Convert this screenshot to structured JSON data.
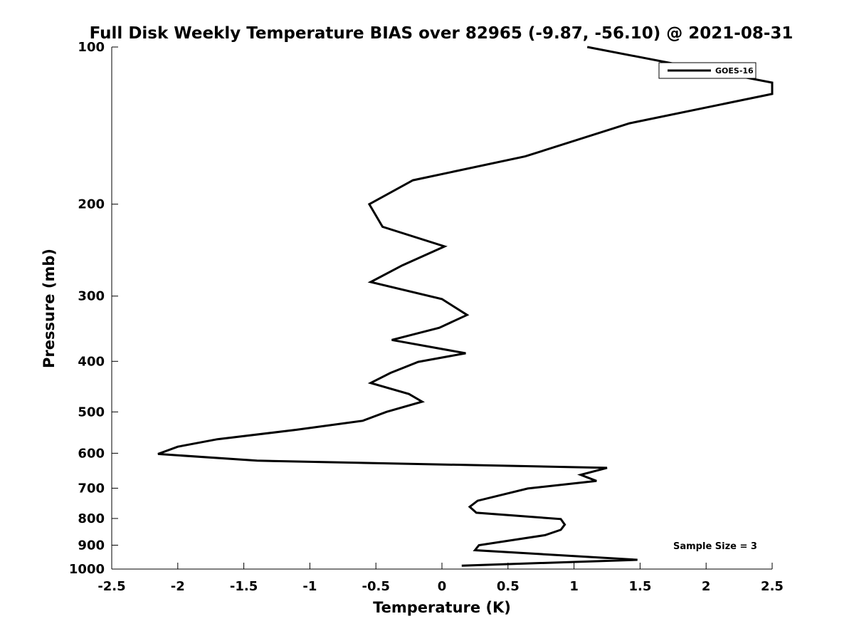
{
  "chart_data": {
    "type": "line",
    "title": "Full Disk Weekly Temperature BIAS over 82965 (-9.87, -56.10) @ 2021-08-31",
    "xlabel": "Temperature (K)",
    "ylabel": "Pressure (mb)",
    "xlim": [
      -2.5,
      2.5
    ],
    "ylim": [
      100,
      1000
    ],
    "y_scale": "log",
    "y_inverted": true,
    "x_ticks": [
      -2.5,
      -2,
      -1.5,
      -1,
      -0.5,
      0,
      0.5,
      1,
      1.5,
      2,
      2.5
    ],
    "x_tick_labels": [
      "-2.5",
      "-2",
      "-1.5",
      "-1",
      "-0.5",
      "0",
      "0.5",
      "1",
      "1.5",
      "2",
      "2.5"
    ],
    "y_ticks": [
      100,
      200,
      300,
      400,
      500,
      600,
      700,
      800,
      900,
      1000
    ],
    "y_tick_labels": [
      "100",
      "200",
      "300",
      "400",
      "500",
      "600",
      "700",
      "800",
      "900",
      "1000"
    ],
    "grid": false,
    "legend_position": "top-right",
    "series": [
      {
        "name": "GOES-16",
        "color": "#000000",
        "points": [
          {
            "x": 1.1,
            "y": 100
          },
          {
            "x": 2.5,
            "y": 117
          },
          {
            "x": 2.5,
            "y": 123
          },
          {
            "x": 1.42,
            "y": 140
          },
          {
            "x": 0.63,
            "y": 162
          },
          {
            "x": -0.22,
            "y": 180
          },
          {
            "x": -0.55,
            "y": 200
          },
          {
            "x": -0.45,
            "y": 221
          },
          {
            "x": 0.02,
            "y": 241
          },
          {
            "x": -0.3,
            "y": 262
          },
          {
            "x": -0.54,
            "y": 282
          },
          {
            "x": 0.0,
            "y": 304
          },
          {
            "x": 0.19,
            "y": 326
          },
          {
            "x": -0.02,
            "y": 345
          },
          {
            "x": -0.38,
            "y": 364
          },
          {
            "x": 0.18,
            "y": 386
          },
          {
            "x": -0.18,
            "y": 401
          },
          {
            "x": -0.39,
            "y": 421
          },
          {
            "x": -0.54,
            "y": 440
          },
          {
            "x": -0.25,
            "y": 462
          },
          {
            "x": -0.15,
            "y": 478
          },
          {
            "x": -0.42,
            "y": 500
          },
          {
            "x": -0.6,
            "y": 520
          },
          {
            "x": -1.1,
            "y": 541
          },
          {
            "x": -1.7,
            "y": 564
          },
          {
            "x": -2.0,
            "y": 583
          },
          {
            "x": -2.15,
            "y": 602
          },
          {
            "x": -1.4,
            "y": 620
          },
          {
            "x": 1.25,
            "y": 640
          },
          {
            "x": 1.05,
            "y": 660
          },
          {
            "x": 1.17,
            "y": 678
          },
          {
            "x": 0.65,
            "y": 701
          },
          {
            "x": 0.27,
            "y": 740
          },
          {
            "x": 0.21,
            "y": 760
          },
          {
            "x": 0.26,
            "y": 780
          },
          {
            "x": 0.9,
            "y": 802
          },
          {
            "x": 0.93,
            "y": 822
          },
          {
            "x": 0.9,
            "y": 841
          },
          {
            "x": 0.78,
            "y": 861
          },
          {
            "x": 0.28,
            "y": 900
          },
          {
            "x": 0.25,
            "y": 920
          },
          {
            "x": 1.48,
            "y": 960
          },
          {
            "x": 0.15,
            "y": 985
          }
        ]
      }
    ],
    "annotations": [
      "Sample Size = 3"
    ]
  }
}
